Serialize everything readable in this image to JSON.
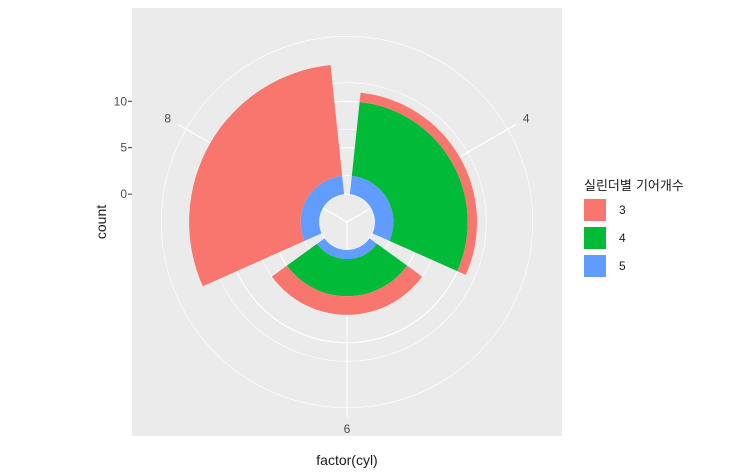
{
  "chart_data": {
    "type": "bar",
    "coord": "polar",
    "xlabel": "factor(cyl)",
    "ylabel": "count",
    "categories": [
      "4",
      "6",
      "8"
    ],
    "radial_ticks": [
      0,
      5,
      10
    ],
    "ylim": [
      -3,
      18
    ],
    "legend": {
      "title": "실린더별 기어개수",
      "position": "right",
      "entries": [
        "3",
        "4",
        "5"
      ]
    },
    "series": [
      {
        "name": "5",
        "color": "#619CFF",
        "values": [
          2,
          1,
          2
        ]
      },
      {
        "name": "4",
        "color": "#00BA38",
        "values": [
          8,
          4,
          0
        ]
      },
      {
        "name": "3",
        "color": "#F8766D",
        "values": [
          1,
          2,
          12
        ]
      }
    ],
    "panel_background": "#EBEBEB",
    "grid_color": "#FFFFFF",
    "grid": true
  }
}
